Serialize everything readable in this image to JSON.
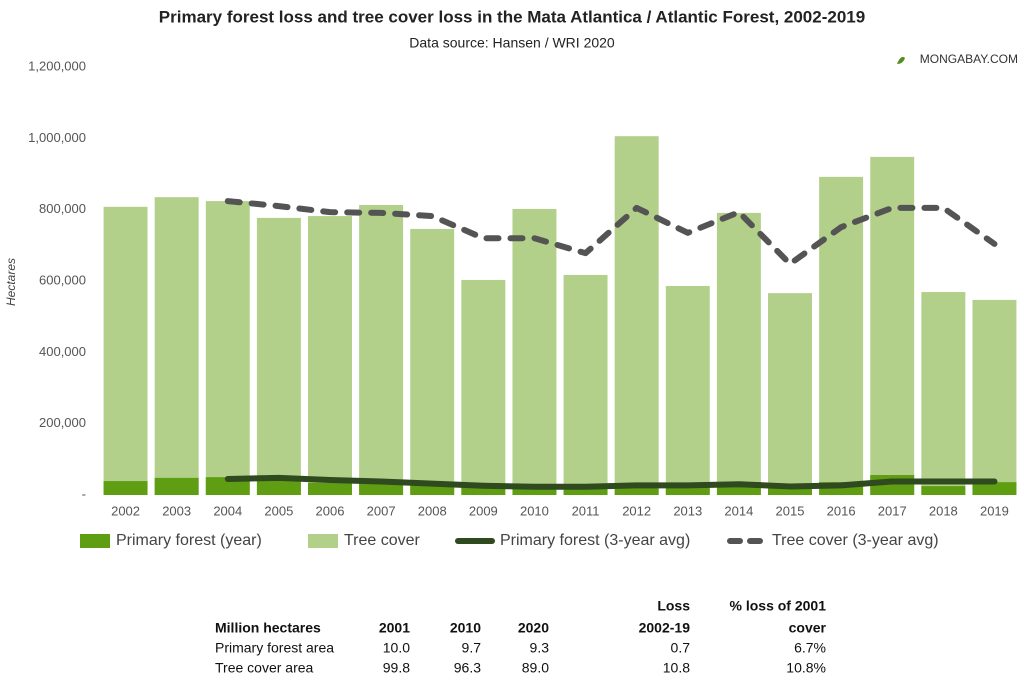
{
  "chart_data": {
    "type": "bar",
    "title": "Primary forest loss and tree cover loss in the Mata Atlantica / Atlantic Forest, 2002-2019",
    "subtitle": "Data source: Hansen / WRI 2020",
    "watermark": "MONGABAY.COM",
    "y_label": "Hectares",
    "categories": [
      "2002",
      "2003",
      "2004",
      "2005",
      "2006",
      "2007",
      "2008",
      "2009",
      "2010",
      "2011",
      "2012",
      "2013",
      "2014",
      "2015",
      "2016",
      "2017",
      "2018",
      "2019"
    ],
    "series": [
      {
        "name": "Primary forest (year)",
        "kind": "bar",
        "color": "#5f9d12",
        "values": [
          39000,
          48000,
          50000,
          42000,
          34000,
          36000,
          28000,
          22000,
          20000,
          25000,
          31000,
          28000,
          36000,
          22000,
          36000,
          56000,
          25000,
          36000
        ]
      },
      {
        "name": "Tree cover",
        "kind": "bar",
        "color": "#b2d089",
        "values": [
          808000,
          835000,
          824000,
          777000,
          782000,
          813000,
          746000,
          603000,
          802000,
          617000,
          1006000,
          586000,
          791000,
          566000,
          892000,
          948000,
          569000,
          547000
        ]
      },
      {
        "name": "Primary forest (3-year avg)",
        "kind": "line",
        "color": "#2f4a1e",
        "dashed": false,
        "values": [
          null,
          null,
          45000,
          48000,
          42000,
          38000,
          32000,
          26000,
          23000,
          23000,
          27000,
          27000,
          30000,
          24000,
          27000,
          38000,
          38000,
          38000
        ]
      },
      {
        "name": "Tree cover (3-year avg)",
        "kind": "line",
        "color": "#545454",
        "dashed": true,
        "values": [
          null,
          null,
          824000,
          810000,
          793000,
          791000,
          782000,
          720000,
          720000,
          678000,
          805000,
          735000,
          793000,
          648000,
          751000,
          805000,
          805000,
          704000
        ]
      }
    ],
    "ylim": [
      0,
      1200000
    ],
    "yticks": [
      {
        "value": 0,
        "label": "-"
      },
      {
        "value": 200000,
        "label": "200,000"
      },
      {
        "value": 400000,
        "label": "400,000"
      },
      {
        "value": 600000,
        "label": "600,000"
      },
      {
        "value": 800000,
        "label": "800,000"
      },
      {
        "value": 1000000,
        "label": "1,000,000"
      },
      {
        "value": 1200000,
        "label": "1,200,000"
      }
    ],
    "grid": false
  },
  "table": {
    "header": {
      "label": "Million hectares",
      "columns": [
        [
          "2001"
        ],
        [
          "2010"
        ],
        [
          "2020"
        ],
        [
          "Loss",
          "2002-19"
        ],
        [
          "% loss of 2001",
          "cover"
        ]
      ]
    },
    "rows": [
      [
        "Primary forest area",
        "10.0",
        "9.7",
        "9.3",
        "0.7",
        "6.7%"
      ],
      [
        "Tree cover area",
        "99.8",
        "96.3",
        "89.0",
        "10.8",
        "10.8%"
      ]
    ]
  }
}
